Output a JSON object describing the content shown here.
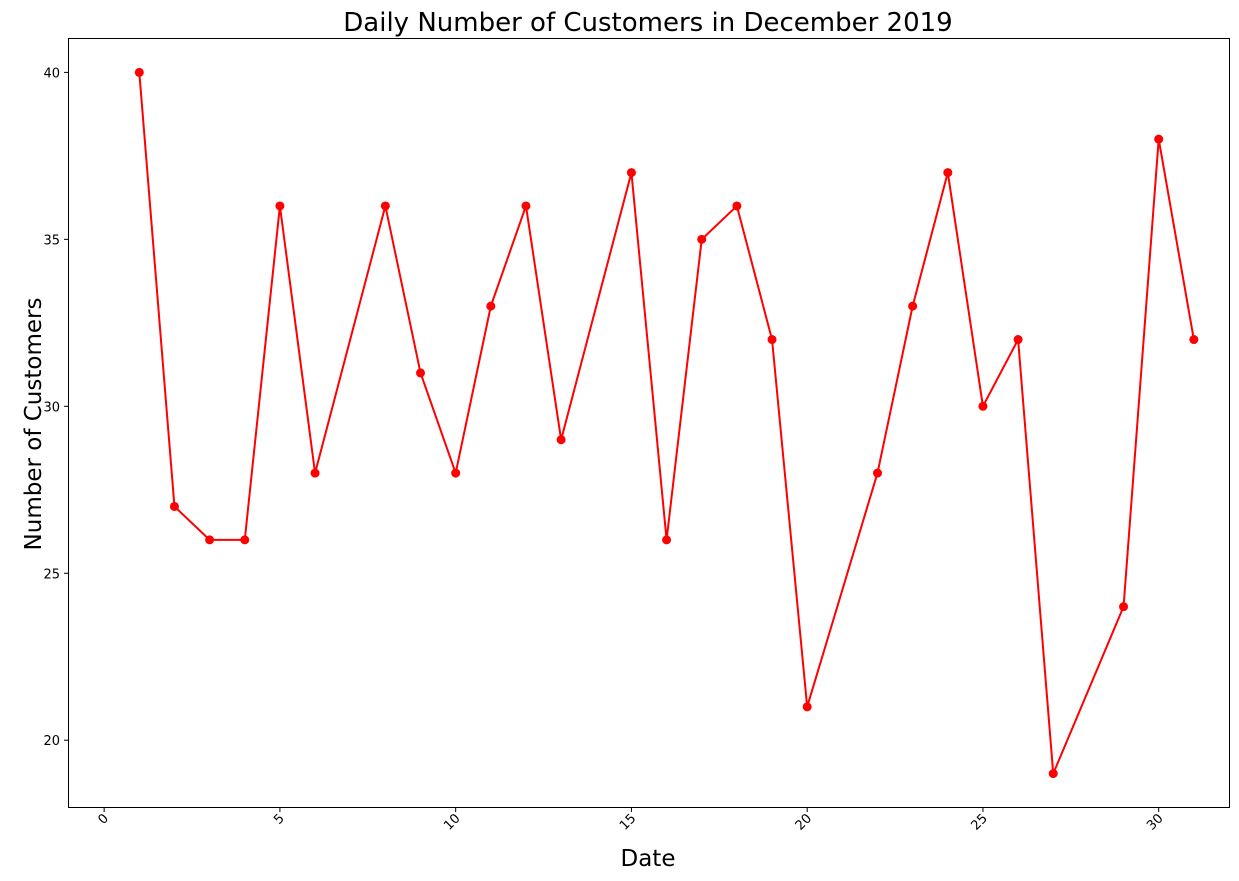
{
  "chart_data": {
    "type": "line",
    "title": "Daily Number of Customers in December 2019",
    "xlabel": "Date",
    "ylabel": "Number of Customers",
    "xlim": [
      -1.0,
      32.0
    ],
    "ylim": [
      18.0,
      41.0
    ],
    "xticks": [
      0,
      5,
      10,
      15,
      20,
      25,
      30
    ],
    "yticks": [
      20,
      25,
      30,
      35,
      40
    ],
    "grid": false,
    "color": "#ff0000",
    "marker": "circle",
    "x": [
      1,
      2,
      3,
      4,
      5,
      6,
      8,
      9,
      10,
      11,
      12,
      13,
      15,
      16,
      17,
      18,
      19,
      20,
      22,
      23,
      24,
      25,
      26,
      27,
      29,
      30,
      31
    ],
    "y": [
      40,
      27,
      26,
      26,
      36,
      28,
      36,
      31,
      28,
      33,
      36,
      29,
      37,
      26,
      35,
      36,
      32,
      21,
      28,
      33,
      37,
      30,
      32,
      19,
      24,
      38,
      32
    ]
  }
}
